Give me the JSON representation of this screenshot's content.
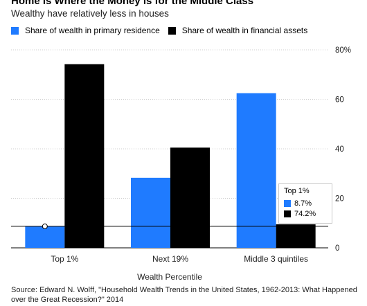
{
  "header": {
    "title": "Home is Where the Money is for the Middle Class",
    "subtitle": "Wealthy have relatively less in houses"
  },
  "source": "Source: Edward N. Wolff, \"Household Wealth Trends in the United States, 1962-2013: What Happened over the Great Recession?\" 2014",
  "tooltip": {
    "title": "Top 1%",
    "rows": [
      "8.7%",
      "74.2%"
    ]
  },
  "colors": {
    "residence": "#1f7bff",
    "financial": "#000000"
  },
  "chart_data": {
    "type": "bar",
    "title": "Home is Where the Money is for the Middle Class",
    "subtitle": "Wealthy have relatively less in houses",
    "categories": [
      "Top 1%",
      "Next 19%",
      "Middle 3 quintiles"
    ],
    "series": [
      {
        "name": "Share of wealth in primary residence",
        "values": [
          8.7,
          28.3,
          62.5
        ]
      },
      {
        "name": "Share of wealth in financial assets",
        "values": [
          74.2,
          40.5,
          9.5
        ]
      }
    ],
    "xlabel": "Wealth Percentile",
    "ylabel": "",
    "ylim": [
      0,
      80
    ],
    "yticks": [
      "0",
      "20",
      "40",
      "60",
      "80%"
    ],
    "grid": true,
    "legend": "top-left"
  }
}
